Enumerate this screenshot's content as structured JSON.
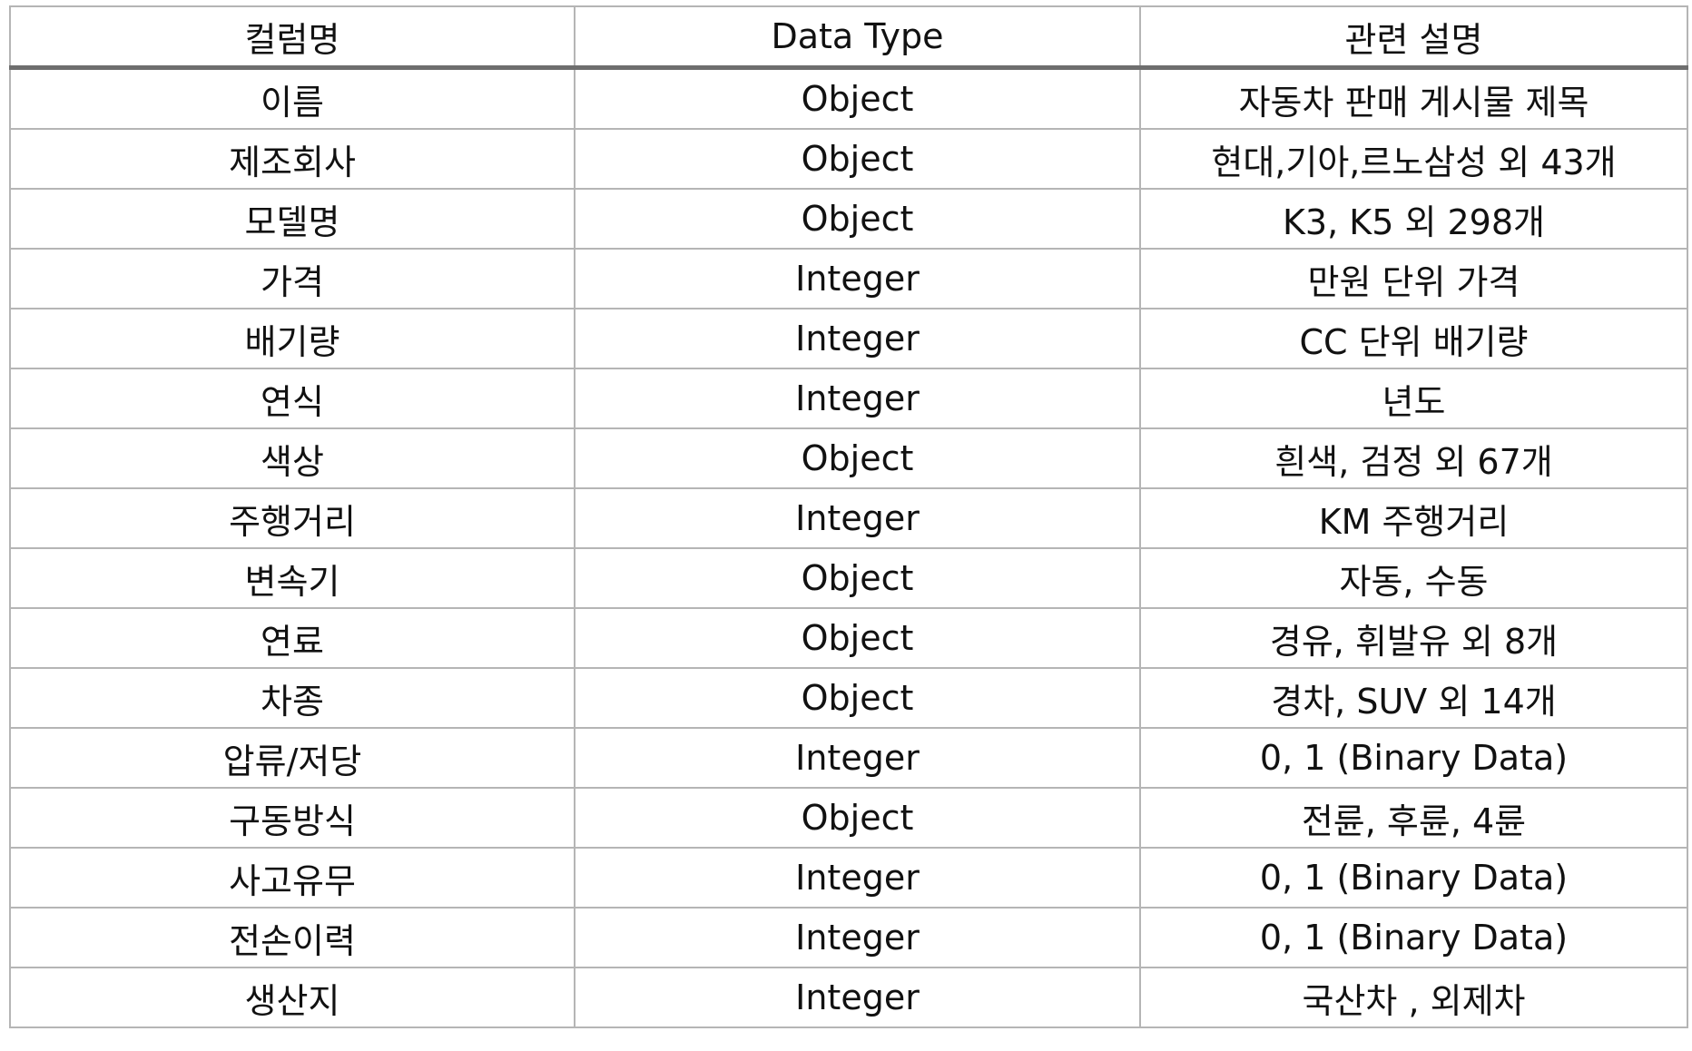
{
  "table": {
    "headers": [
      "컬럼명",
      "Data Type",
      "관련 설명"
    ],
    "rows": [
      [
        "이름",
        "Object",
        "자동차 판매 게시물 제목"
      ],
      [
        "제조회사",
        "Object",
        "현대,기아,르노삼성 외 43개"
      ],
      [
        "모델명",
        "Object",
        "K3, K5 외 298개"
      ],
      [
        "가격",
        "Integer",
        "만원 단위 가격"
      ],
      [
        "배기량",
        "Integer",
        "CC 단위 배기량"
      ],
      [
        "연식",
        "Integer",
        "년도"
      ],
      [
        "색상",
        "Object",
        "흰색, 검정 외 67개"
      ],
      [
        "주행거리",
        "Integer",
        "KM 주행거리"
      ],
      [
        "변속기",
        "Object",
        "자동, 수동"
      ],
      [
        "연료",
        "Object",
        "경유, 휘발유 외 8개"
      ],
      [
        "차종",
        "Object",
        "경차, SUV 외 14개"
      ],
      [
        "압류/저당",
        "Integer",
        "0, 1 (Binary Data)"
      ],
      [
        "구동방식",
        "Object",
        "전륜, 후륜, 4륜"
      ],
      [
        "사고유무",
        "Integer",
        "0, 1 (Binary Data)"
      ],
      [
        "전손이력",
        "Integer",
        "0, 1 (Binary Data)"
      ],
      [
        "생산지",
        "Integer",
        "국산차 , 외제차"
      ]
    ]
  }
}
